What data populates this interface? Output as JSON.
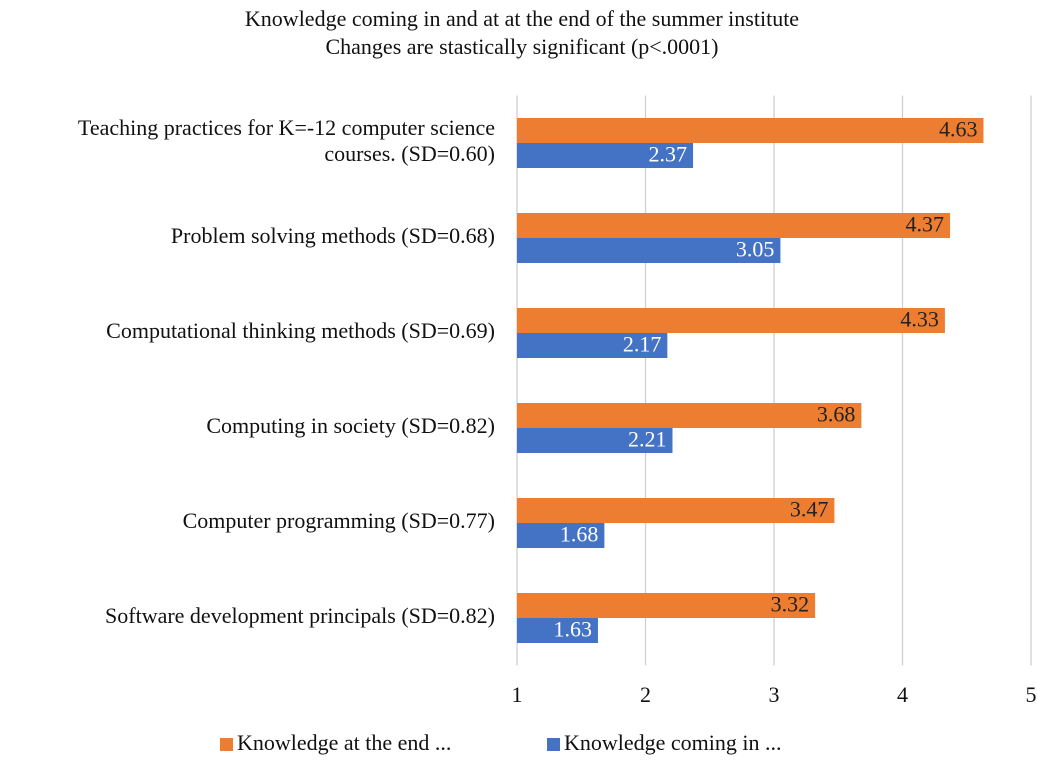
{
  "chart_data": {
    "type": "barh",
    "title": "Knowledge coming in and at at the end of the summer institute",
    "subtitle": "Changes are stastically significant (p<.0001)",
    "categories": [
      "Teaching practices for K=-12 computer science courses. (SD=0.60)",
      "Problem solving methods (SD=0.68)",
      "Computational thinking methods (SD=0.69)",
      "Computing in society (SD=0.82)",
      "Computer programming (SD=0.77)",
      "Software development principals (SD=0.82)"
    ],
    "series": [
      {
        "name": "Knowledge at the end ...",
        "color": "#ED7D31",
        "values": [
          4.63,
          4.37,
          4.33,
          3.68,
          3.47,
          3.32
        ]
      },
      {
        "name": "Knowledge coming in ...",
        "color": "#4472C4",
        "values": [
          2.37,
          3.05,
          2.17,
          2.21,
          1.68,
          1.63
        ]
      }
    ],
    "xlim": [
      1,
      5
    ],
    "xticks": [
      1,
      2,
      3,
      4,
      5
    ],
    "grid": true,
    "legend": "bottom"
  }
}
